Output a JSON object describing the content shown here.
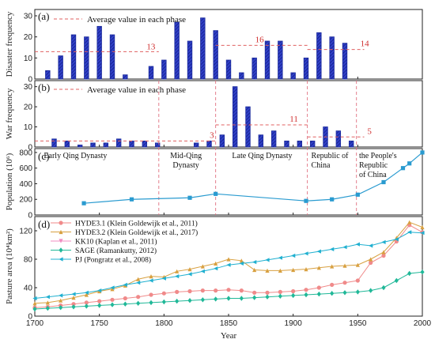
{
  "chart_data": [
    {
      "panel": "(a)",
      "type": "bar",
      "ylabel": "Disaster frequency",
      "ylim": [
        0,
        33
      ],
      "yticks": [
        0,
        10,
        20,
        30
      ],
      "x": [
        1710,
        1720,
        1730,
        1740,
        1750,
        1760,
        1770,
        1780,
        1790,
        1800,
        1810,
        1820,
        1830,
        1840,
        1850,
        1860,
        1870,
        1880,
        1890,
        1900,
        1910,
        1920,
        1930,
        1940,
        1950
      ],
      "values": [
        4,
        11,
        21,
        20,
        25,
        21,
        2,
        0,
        6,
        9,
        27,
        18,
        29,
        23,
        9,
        3,
        10,
        18,
        18,
        3,
        10,
        22,
        20,
        17,
        0
      ],
      "legend": "Average value in each phase",
      "averages": [
        {
          "x_start": 1700,
          "x_end": 1796,
          "value": 13,
          "label": "13"
        },
        {
          "x_start": 1840,
          "x_end": 1911,
          "value": 16,
          "label": "16"
        },
        {
          "x_start": 1911,
          "x_end": 1955,
          "value": 14,
          "label": "14"
        }
      ]
    },
    {
      "panel": "(b)",
      "type": "bar",
      "ylabel": "War frequency",
      "ylim": [
        0,
        33
      ],
      "yticks": [
        0,
        10,
        20,
        30
      ],
      "x": [
        1715,
        1725,
        1735,
        1745,
        1755,
        1765,
        1775,
        1785,
        1795,
        1805,
        1815,
        1825,
        1835,
        1845,
        1855,
        1865,
        1875,
        1885,
        1895,
        1905,
        1915,
        1925,
        1935,
        1945,
        1955
      ],
      "values": [
        4,
        3,
        1,
        2,
        2,
        4,
        3,
        3,
        2,
        0,
        0,
        2,
        3,
        6,
        30,
        20,
        6,
        8,
        3,
        3,
        3,
        10,
        8,
        3,
        0
      ],
      "legend": "Average value in each phase",
      "averages": [
        {
          "x_start": 1700,
          "x_end": 1840,
          "value": 3,
          "label": "3"
        },
        {
          "x_start": 1840,
          "x_end": 1911,
          "value": 11,
          "label": "11"
        },
        {
          "x_start": 1911,
          "x_end": 1955,
          "value": 5,
          "label": "5"
        }
      ]
    },
    {
      "panel": "(c)",
      "type": "line",
      "ylabel": "Population (10⁶)",
      "ylim": [
        0,
        850
      ],
      "yticks": [
        0,
        200,
        400,
        600,
        800
      ],
      "x": [
        1738,
        1775,
        1820,
        1840,
        1910,
        1930,
        1950,
        1970,
        1985,
        1990,
        2000
      ],
      "values": [
        150,
        200,
        220,
        270,
        180,
        200,
        260,
        420,
        600,
        660,
        800
      ],
      "phases": [
        {
          "label_lines": [
            "Early Qing Dynasty"
          ],
          "x_start": 1700,
          "x_end": 1796
        },
        {
          "label_lines": [
            "Mid-Qing",
            "Dynasty"
          ],
          "x_start": 1796,
          "x_end": 1840
        },
        {
          "label_lines": [
            "Late Qing Dynasty"
          ],
          "x_start": 1840,
          "x_end": 1911
        },
        {
          "label_lines": [
            "Republic of",
            "China"
          ],
          "x_start": 1911,
          "x_end": 1949
        },
        {
          "label_lines": [
            "the People's",
            "Republic",
            "of China"
          ],
          "x_start": 1949,
          "x_end": 2000
        }
      ]
    },
    {
      "panel": "(d)",
      "type": "line",
      "xlabel": "Year",
      "ylabel": "Pasture area (10⁴km²)",
      "xlim": [
        1700,
        2000
      ],
      "xticks": [
        1700,
        1750,
        1800,
        1850,
        1900,
        1950,
        2000
      ],
      "ylim": [
        0,
        140
      ],
      "yticks": [
        0,
        40,
        80,
        120
      ],
      "series": [
        {
          "name": "HYDE3.1 (Klein Goldewijk et al., 2011)",
          "color": "#f08a8a",
          "marker": "circle",
          "x": [
            1700,
            1710,
            1720,
            1730,
            1740,
            1750,
            1760,
            1770,
            1780,
            1790,
            1800,
            1810,
            1820,
            1830,
            1840,
            1850,
            1860,
            1870,
            1880,
            1890,
            1900,
            1910,
            1920,
            1930,
            1940,
            1950,
            1960,
            1970,
            1980,
            1990,
            2000
          ],
          "values": [
            12,
            13,
            15,
            17,
            19,
            21,
            23,
            25,
            27,
            30,
            32,
            34,
            35,
            36,
            36,
            37,
            36,
            33,
            33,
            34,
            35,
            37,
            40,
            44,
            47,
            50,
            75,
            85,
            105,
            128,
            118
          ]
        },
        {
          "name": "HYDE3.2 (Klein Goldewijk et al., 2017)",
          "color": "#d8a040",
          "marker": "triangle-up",
          "x": [
            1700,
            1710,
            1720,
            1730,
            1740,
            1750,
            1760,
            1770,
            1780,
            1790,
            1800,
            1810,
            1820,
            1830,
            1840,
            1850,
            1860,
            1870,
            1880,
            1890,
            1900,
            1910,
            1920,
            1930,
            1940,
            1950,
            1960,
            1970,
            1980,
            1990,
            2000
          ],
          "values": [
            18,
            19,
            22,
            26,
            30,
            35,
            38,
            43,
            52,
            56,
            55,
            63,
            66,
            70,
            74,
            80,
            78,
            65,
            64,
            64,
            65,
            66,
            68,
            70,
            71,
            72,
            80,
            90,
            110,
            132,
            125
          ]
        },
        {
          "name": "KK10 (Kaplan et al., 2011)",
          "color": "#f08cc0",
          "marker": "triangle-down",
          "x": [],
          "values": []
        },
        {
          "name": "SAGE (Ramankutty, 2012)",
          "color": "#20b898",
          "marker": "diamond",
          "x": [
            1700,
            1710,
            1720,
            1730,
            1740,
            1750,
            1760,
            1770,
            1780,
            1790,
            1800,
            1810,
            1820,
            1830,
            1840,
            1850,
            1860,
            1870,
            1880,
            1890,
            1900,
            1910,
            1920,
            1930,
            1940,
            1950,
            1960,
            1970,
            1980,
            1990,
            2000
          ],
          "values": [
            10,
            11,
            12,
            13,
            14,
            15,
            16,
            17,
            18,
            19,
            20,
            21,
            22,
            23,
            24,
            25,
            25,
            26,
            27,
            28,
            29,
            30,
            31,
            32,
            33,
            34,
            36,
            40,
            50,
            60,
            62
          ]
        },
        {
          "name": "PJ (Pongratz et al., 2008)",
          "color": "#20b0d0",
          "marker": "triangle-left",
          "x": [
            1700,
            1710,
            1720,
            1730,
            1740,
            1750,
            1760,
            1770,
            1780,
            1790,
            1800,
            1810,
            1820,
            1830,
            1840,
            1850,
            1860,
            1870,
            1880,
            1890,
            1900,
            1910,
            1920,
            1930,
            1940,
            1950,
            1960,
            1970,
            1980,
            1990,
            2000
          ],
          "values": [
            25,
            27,
            29,
            31,
            33,
            36,
            40,
            44,
            47,
            50,
            53,
            56,
            59,
            63,
            67,
            72,
            74,
            76,
            79,
            82,
            85,
            88,
            91,
            94,
            97,
            101,
            99,
            104,
            108,
            118,
            117
          ]
        }
      ]
    }
  ]
}
